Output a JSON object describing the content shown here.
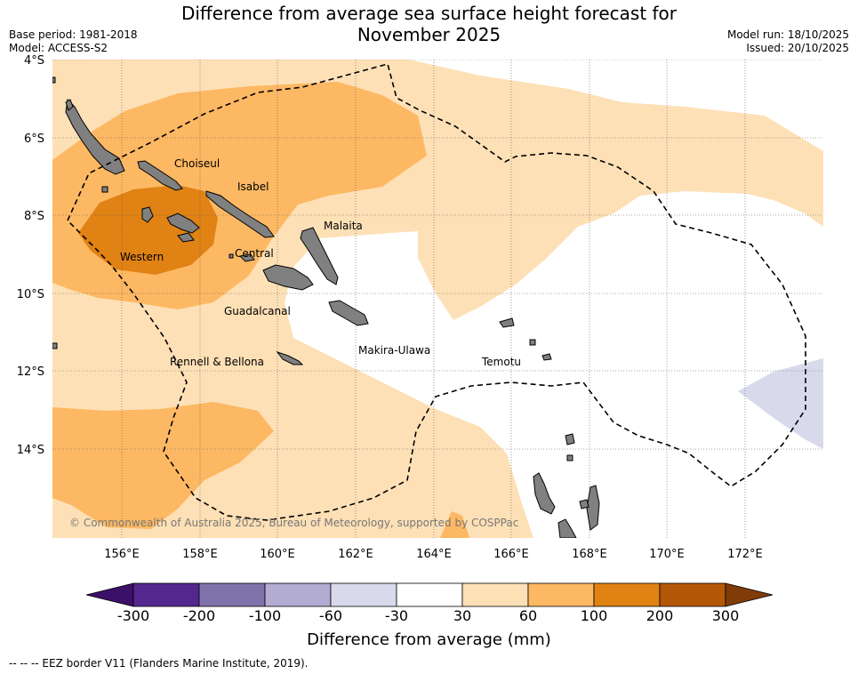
{
  "header": {
    "title_line1": "Difference from average sea surface height forecast for",
    "title_line2": "November 2025",
    "base_period": "Base period: 1981-2018",
    "model": "Model: ACCESS-S2",
    "model_run": "Model run: 18/10/2025",
    "issued": "Issued: 20/10/2025"
  },
  "map": {
    "lat_labels": [
      "4°S",
      "6°S",
      "8°S",
      "10°S",
      "12°S",
      "14°S"
    ],
    "lon_labels": [
      "156°E",
      "158°E",
      "160°E",
      "162°E",
      "164°E",
      "166°E",
      "168°E",
      "170°E",
      "172°E"
    ],
    "places": [
      "Choiseul",
      "Isabel",
      "Malaita",
      "Western",
      "Central",
      "Guadalcanal",
      "Rennell & Bellona",
      "Makira-Ulawa",
      "Temotu"
    ],
    "credit": "© Commonwealth of Australia 2025, Bureau of Meteorology, supported by COSPPac"
  },
  "colorbar": {
    "ticks": [
      "-300",
      "-200",
      "-100",
      "-60",
      "-30",
      "30",
      "60",
      "100",
      "200",
      "300"
    ],
    "colors": [
      "#3b1068",
      "#54278f",
      "#8073ac",
      "#b2abd2",
      "#d8daeb",
      "#ffffff",
      "#fee0b6",
      "#fdb863",
      "#e08214",
      "#b35806",
      "#7f3b08"
    ],
    "label": "Difference from average (mm)"
  },
  "colors": {
    "light_orange": "#fee0b6",
    "orange": "#fdb863",
    "dark_orange": "#e08214",
    "light_purple": "#d8daeb",
    "land": "#808080"
  },
  "footer": {
    "legend_text": "--  --  -- EEZ border V11 (Flanders Marine Institute, 2019)."
  }
}
